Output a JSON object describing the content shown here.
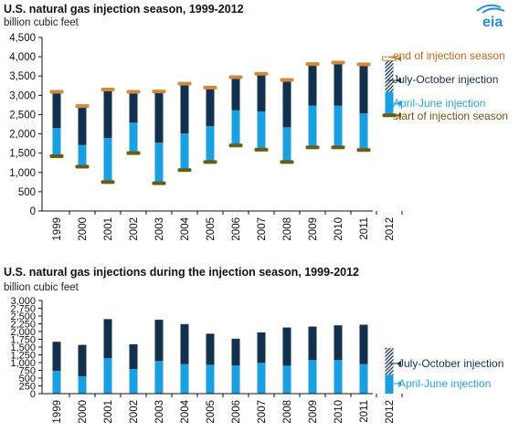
{
  "logo": {
    "text": "eia",
    "color": "#2b8fd6"
  },
  "colors": {
    "april_june": "#1aa0e0",
    "july_october": "#13314d",
    "end_marker": "#d08a3c",
    "start_marker": "#6b5a12",
    "axis": "#111111",
    "legend_end_text": "#c0651b",
    "legend_july_text": "#13314d",
    "legend_april_text": "#2aa3e0",
    "legend_start_text": "#6b5a12"
  },
  "chart_data": [
    {
      "type": "bar",
      "title": "U.S. natural gas injection season, 1999-2012",
      "ylabel": "billion cubic feet",
      "ylim": [
        0,
        4500
      ],
      "ytick_step": 500,
      "yticks": [
        "0",
        "500",
        "1,000",
        "1,500",
        "2,000",
        "2,500",
        "3,000",
        "3,500",
        "4,000",
        "4,500"
      ],
      "categories": [
        "1999",
        "2000",
        "2001",
        "2002",
        "2003",
        "2004",
        "2005",
        "2006",
        "2007",
        "2008",
        "2009",
        "2010",
        "2011",
        "2012"
      ],
      "series": [
        {
          "name": "start of injection season",
          "values": [
            1420,
            1150,
            750,
            1500,
            720,
            1060,
            1270,
            1700,
            1590,
            1270,
            1650,
            1650,
            1580,
            2480
          ]
        },
        {
          "name": "April-June injection",
          "values": [
            730,
            560,
            1140,
            790,
            1050,
            950,
            930,
            910,
            990,
            900,
            1080,
            1080,
            950,
            610
          ]
        },
        {
          "name": "July-October injection",
          "values": [
            940,
            1010,
            1260,
            800,
            1330,
            1290,
            1000,
            860,
            980,
            1230,
            1080,
            1120,
            1270,
            860
          ]
        },
        {
          "name": "end of injection season",
          "values": [
            3090,
            2720,
            3150,
            3090,
            3100,
            3300,
            3200,
            3470,
            3560,
            3400,
            3810,
            3850,
            3800,
            3950
          ]
        }
      ],
      "projected_category": "2012",
      "legend": [
        {
          "label": "end of injection season",
          "series": "end of injection season"
        },
        {
          "label": "July-October injection",
          "series": "July-October injection"
        },
        {
          "label": "April-June injection",
          "series": "April-June injection"
        },
        {
          "label": "start of injection season",
          "series": "start of injection season"
        }
      ],
      "legend_placement": "right"
    },
    {
      "type": "bar",
      "title": "U.S. natural gas injections during the injection season, 1999-2012",
      "ylabel": "billion cubic feet",
      "ylim": [
        0,
        3000
      ],
      "ytick_step": 250,
      "yticks": [
        "0",
        "250",
        "500",
        "750",
        "1,000",
        "1,250",
        "1,500",
        "1,750",
        "2,000",
        "2,250",
        "2,500",
        "2,750",
        "3,000"
      ],
      "categories": [
        "1999",
        "2000",
        "2001",
        "2002",
        "2003",
        "2004",
        "2005",
        "2006",
        "2007",
        "2008",
        "2009",
        "2010",
        "2011",
        "2012"
      ],
      "series": [
        {
          "name": "April-June injection",
          "values": [
            730,
            560,
            1140,
            790,
            1050,
            950,
            930,
            910,
            990,
            900,
            1080,
            1080,
            950,
            610
          ]
        },
        {
          "name": "July-October injection",
          "values": [
            940,
            1010,
            1260,
            800,
            1330,
            1290,
            1000,
            860,
            980,
            1230,
            1080,
            1120,
            1270,
            860
          ]
        }
      ],
      "projected_category": "2012",
      "legend": [
        {
          "label": "July-October injection",
          "series": "July-October injection"
        },
        {
          "label": "April-June injection",
          "series": "April-June injection"
        }
      ],
      "legend_placement": "right"
    }
  ]
}
